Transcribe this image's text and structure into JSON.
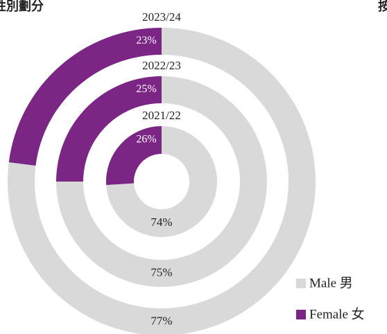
{
  "chart_data": {
    "type": "donut",
    "title": "性別劃分",
    "annotations": [
      "按"
    ],
    "categories": [
      "2021/22",
      "2022/23",
      "2023/24"
    ],
    "series": [
      {
        "name": "Male 男",
        "color": "#d9d9d9",
        "values": [
          74,
          75,
          77
        ],
        "value_labels": [
          "74%",
          "75%",
          "77%"
        ]
      },
      {
        "name": "Female 女",
        "color": "#7b2585",
        "values": [
          26,
          25,
          23
        ],
        "value_labels": [
          "26%",
          "25%",
          "23%"
        ]
      }
    ],
    "legend": "bottom-right"
  }
}
